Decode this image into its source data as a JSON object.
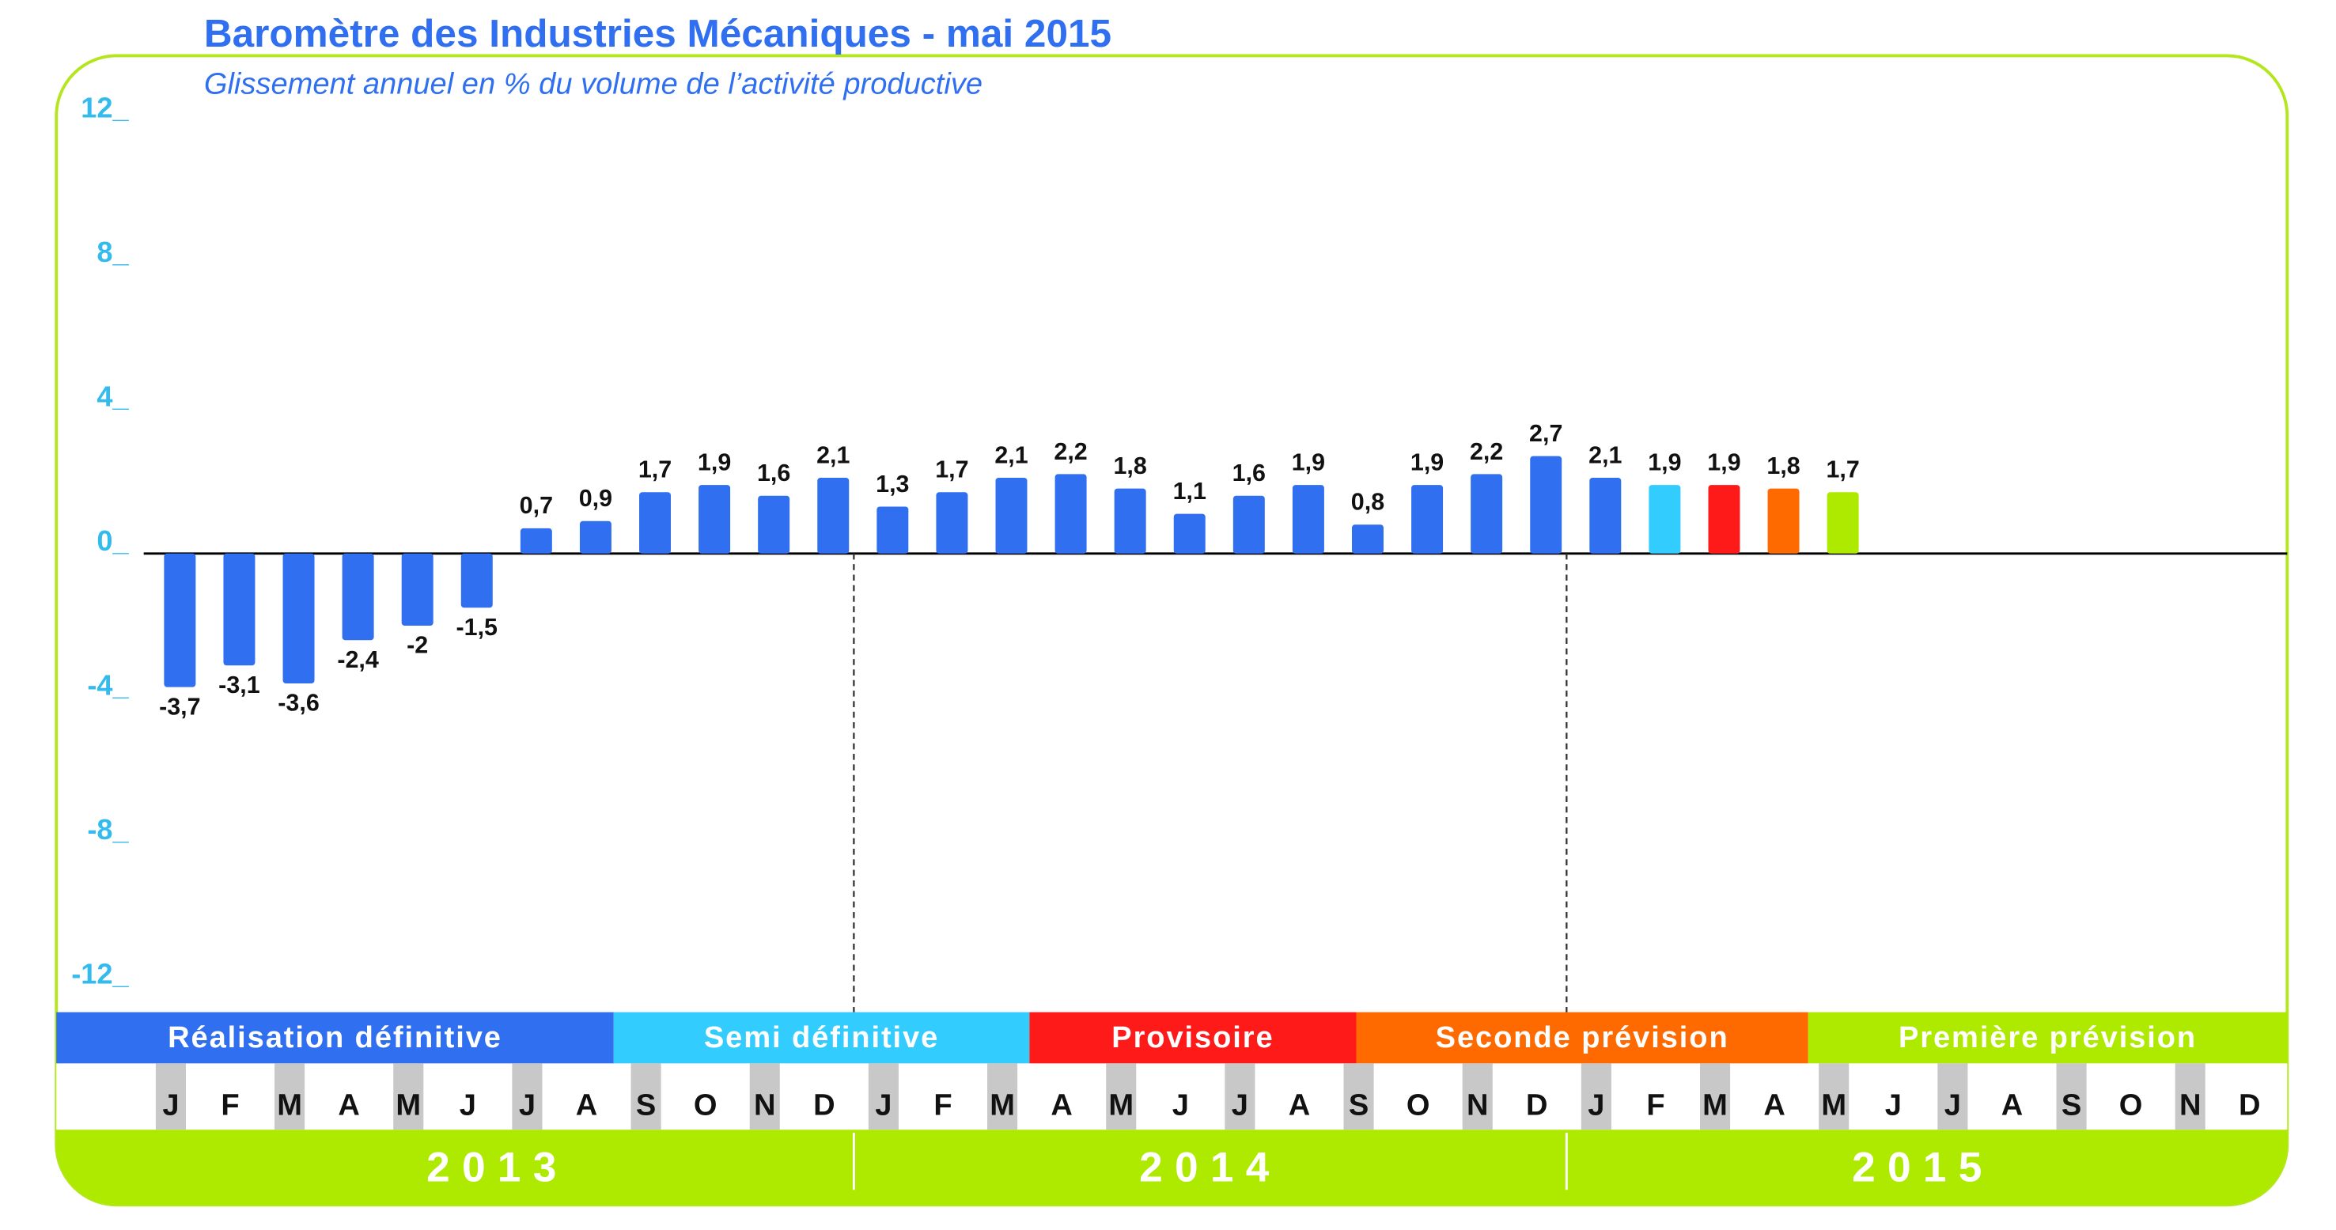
{
  "chart_data": {
    "type": "bar",
    "title": "Baromètre des Industries Mécaniques - mai 2015",
    "subtitle": "Glissement annuel en % du volume de l’activité productive",
    "categories": [
      "J",
      "F",
      "M",
      "A",
      "M",
      "J",
      "J",
      "A",
      "S",
      "O",
      "N",
      "D",
      "J",
      "F",
      "M",
      "A",
      "M",
      "J",
      "J",
      "A",
      "S",
      "O",
      "N",
      "D",
      "J",
      "F",
      "M",
      "A",
      "M",
      "J",
      "J",
      "A",
      "S",
      "O",
      "N",
      "D"
    ],
    "years": [
      "2013",
      "2014",
      "2015"
    ],
    "phases": [
      "Réalisation définitive",
      "Semi définitive",
      "Provisoire",
      "Seconde prévision",
      "Première prévision"
    ],
    "phase_colors": [
      "#2f6ff0",
      "#33ccff",
      "#ff1a1a",
      "#ff6a00",
      "#aeea00"
    ],
    "values": [
      -3.7,
      -3.1,
      -3.6,
      -2.4,
      -2,
      -1.5,
      0.7,
      0.9,
      1.7,
      1.9,
      1.6,
      2.1,
      1.3,
      1.7,
      2.1,
      2.2,
      1.8,
      1.1,
      1.6,
      1.9,
      0.8,
      1.9,
      2.2,
      2.7,
      2.1,
      1.9,
      1.9,
      1.8,
      1.7,
      null,
      null,
      null,
      null,
      null,
      null,
      null
    ],
    "value_labels": [
      "-3,7",
      "-3,1",
      "-3,6",
      "-2,4",
      "-2",
      "-1,5",
      "0,7",
      "0,9",
      "1,7",
      "1,9",
      "1,6",
      "2,1",
      "1,3",
      "1,7",
      "2,1",
      "2,2",
      "1,8",
      "1,1",
      "1,6",
      "1,9",
      "0,8",
      "1,9",
      "2,2",
      "2,7",
      "2,1",
      "1,9",
      "1,9",
      "1,8",
      "1,7",
      null,
      null,
      null,
      null,
      null,
      null,
      null
    ],
    "colors": [
      "#2f6ff0",
      "#2f6ff0",
      "#2f6ff0",
      "#2f6ff0",
      "#2f6ff0",
      "#2f6ff0",
      "#2f6ff0",
      "#2f6ff0",
      "#2f6ff0",
      "#2f6ff0",
      "#2f6ff0",
      "#2f6ff0",
      "#2f6ff0",
      "#2f6ff0",
      "#2f6ff0",
      "#2f6ff0",
      "#2f6ff0",
      "#2f6ff0",
      "#2f6ff0",
      "#2f6ff0",
      "#2f6ff0",
      "#2f6ff0",
      "#2f6ff0",
      "#2f6ff0",
      "#2f6ff0",
      "#33ccff",
      "#ff1a1a",
      "#ff6a00",
      "#aeea00",
      null,
      null,
      null,
      null,
      null,
      null,
      null
    ],
    "ylim": [
      -12,
      12
    ],
    "yticks": [
      {
        "value": 12,
        "label": "12_"
      },
      {
        "value": 8,
        "label": "8_"
      },
      {
        "value": 4,
        "label": "4_"
      },
      {
        "value": 0,
        "label": "0_"
      },
      {
        "value": -4,
        "label": "-4_"
      },
      {
        "value": -8,
        "label": "-8_"
      },
      {
        "value": -12,
        "label": "-12_"
      }
    ],
    "grid": false
  }
}
